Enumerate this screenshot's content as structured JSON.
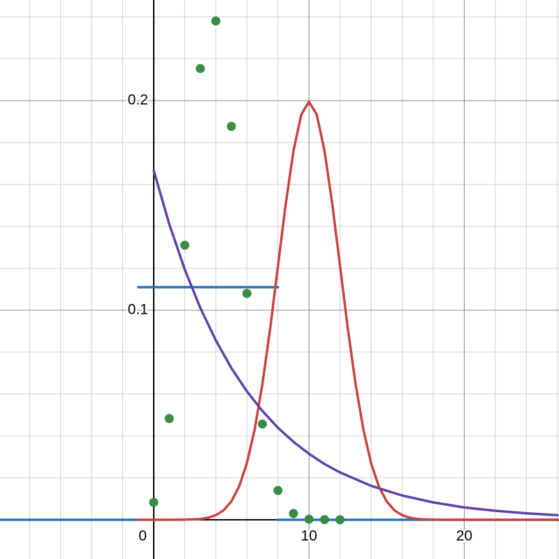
{
  "chart_data": {
    "type": "line",
    "xlim": [
      -9.9,
      26.1
    ],
    "ylim": [
      -0.0187,
      0.248
    ],
    "xticks": [
      0,
      10,
      20
    ],
    "yticks": [
      0.1,
      0.2
    ],
    "grid": true,
    "series": [
      {
        "type": "line",
        "color": "#2d70b3",
        "x": [
          -9.9,
          -1,
          -1,
          -1,
          8,
          8,
          8,
          26.1
        ],
        "values": [
          0,
          0,
          null,
          0.111,
          0.111,
          null,
          0,
          0
        ]
      },
      {
        "type": "line",
        "color": "#c74440",
        "x": [
          -1,
          0,
          1,
          2,
          2.5,
          3,
          3.5,
          4,
          4.5,
          5,
          5.5,
          6,
          6.5,
          7,
          7.5,
          8,
          8.5,
          9,
          9.5,
          10,
          10.5,
          11,
          11.5,
          12,
          12.5,
          13,
          13.5,
          14,
          14.5,
          15,
          15.5,
          16,
          16.5,
          17,
          17.5,
          18,
          19,
          20,
          22,
          24,
          26
        ],
        "values": [
          0,
          0,
          0,
          0.0001,
          0.0002,
          0.0004,
          0.001,
          0.0022,
          0.0045,
          0.0088,
          0.0159,
          0.027,
          0.0431,
          0.0648,
          0.0913,
          0.121,
          0.1506,
          0.176,
          0.1933,
          0.1995,
          0.1933,
          0.176,
          0.1506,
          0.121,
          0.0913,
          0.0648,
          0.0431,
          0.027,
          0.0159,
          0.0088,
          0.0045,
          0.0022,
          0.001,
          0.0004,
          0.0002,
          0.0001,
          0,
          0,
          0,
          0,
          0
        ]
      },
      {
        "type": "line",
        "color": "#6042a6",
        "x": [
          0,
          1,
          2,
          3,
          4,
          5,
          6,
          7,
          8,
          9,
          10,
          11,
          12,
          14,
          16,
          18,
          20,
          22,
          24,
          26
        ],
        "values": [
          0.1667,
          0.1411,
          0.1194,
          0.1011,
          0.0856,
          0.0724,
          0.0613,
          0.0519,
          0.0439,
          0.0372,
          0.0315,
          0.0266,
          0.0226,
          0.0162,
          0.0116,
          0.0083,
          0.0059,
          0.0043,
          0.0031,
          0.0022
        ]
      },
      {
        "type": "scatter",
        "color": "#388c46",
        "x": [
          0,
          1,
          2,
          3,
          4,
          5,
          6,
          7,
          8,
          9,
          10,
          11,
          12
        ],
        "values": [
          0.0083,
          0.0483,
          0.131,
          0.2153,
          0.238,
          0.1877,
          0.108,
          0.0457,
          0.014,
          0.003,
          0.0003,
          0.0001,
          0
        ]
      }
    ]
  }
}
